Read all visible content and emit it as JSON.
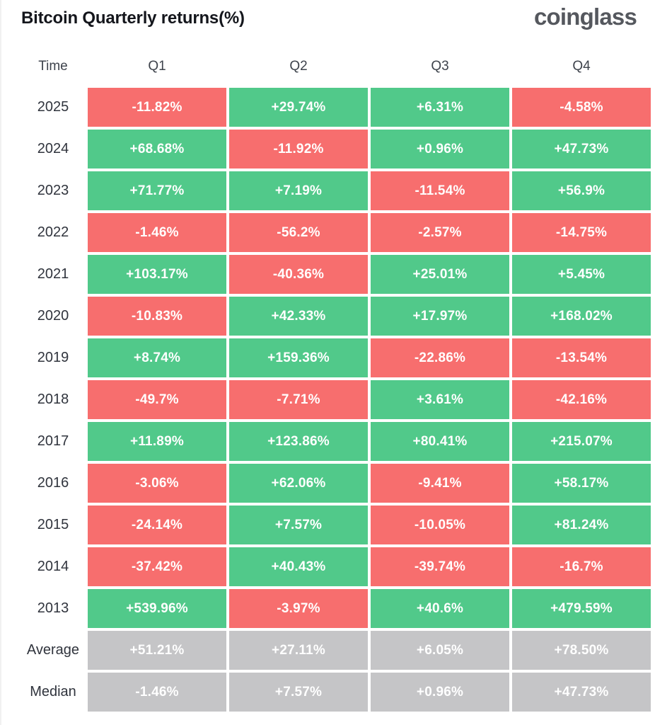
{
  "header": {
    "title": "Bitcoin Quarterly returns(%)",
    "logo_text": "coinglass"
  },
  "colors": {
    "positive": "#51c98a",
    "negative": "#f76e6e",
    "neutral": "#c5c5c7",
    "title_text": "#14161c",
    "logo_text": "#55585e",
    "cell_text": "#ffffff"
  },
  "table": {
    "columns": [
      "Time",
      "Q1",
      "Q2",
      "Q3",
      "Q4"
    ],
    "rows": [
      {
        "label": "2025",
        "values": [
          "-11.82%",
          "+29.74%",
          "+6.31%",
          "-4.58%"
        ],
        "types": [
          "neg",
          "pos",
          "pos",
          "neg"
        ]
      },
      {
        "label": "2024",
        "values": [
          "+68.68%",
          "-11.92%",
          "+0.96%",
          "+47.73%"
        ],
        "types": [
          "pos",
          "neg",
          "pos",
          "pos"
        ]
      },
      {
        "label": "2023",
        "values": [
          "+71.77%",
          "+7.19%",
          "-11.54%",
          "+56.9%"
        ],
        "types": [
          "pos",
          "pos",
          "neg",
          "pos"
        ]
      },
      {
        "label": "2022",
        "values": [
          "-1.46%",
          "-56.2%",
          "-2.57%",
          "-14.75%"
        ],
        "types": [
          "neg",
          "neg",
          "neg",
          "neg"
        ]
      },
      {
        "label": "2021",
        "values": [
          "+103.17%",
          "-40.36%",
          "+25.01%",
          "+5.45%"
        ],
        "types": [
          "pos",
          "neg",
          "pos",
          "pos"
        ]
      },
      {
        "label": "2020",
        "values": [
          "-10.83%",
          "+42.33%",
          "+17.97%",
          "+168.02%"
        ],
        "types": [
          "neg",
          "pos",
          "pos",
          "pos"
        ]
      },
      {
        "label": "2019",
        "values": [
          "+8.74%",
          "+159.36%",
          "-22.86%",
          "-13.54%"
        ],
        "types": [
          "pos",
          "pos",
          "neg",
          "neg"
        ]
      },
      {
        "label": "2018",
        "values": [
          "-49.7%",
          "-7.71%",
          "+3.61%",
          "-42.16%"
        ],
        "types": [
          "neg",
          "neg",
          "pos",
          "neg"
        ]
      },
      {
        "label": "2017",
        "values": [
          "+11.89%",
          "+123.86%",
          "+80.41%",
          "+215.07%"
        ],
        "types": [
          "pos",
          "pos",
          "pos",
          "pos"
        ]
      },
      {
        "label": "2016",
        "values": [
          "-3.06%",
          "+62.06%",
          "-9.41%",
          "+58.17%"
        ],
        "types": [
          "neg",
          "pos",
          "neg",
          "pos"
        ]
      },
      {
        "label": "2015",
        "values": [
          "-24.14%",
          "+7.57%",
          "-10.05%",
          "+81.24%"
        ],
        "types": [
          "neg",
          "pos",
          "neg",
          "pos"
        ]
      },
      {
        "label": "2014",
        "values": [
          "-37.42%",
          "+40.43%",
          "-39.74%",
          "-16.7%"
        ],
        "types": [
          "neg",
          "pos",
          "neg",
          "neg"
        ]
      },
      {
        "label": "2013",
        "values": [
          "+539.96%",
          "-3.97%",
          "+40.6%",
          "+479.59%"
        ],
        "types": [
          "pos",
          "neg",
          "pos",
          "pos"
        ]
      },
      {
        "label": "Average",
        "values": [
          "+51.21%",
          "+27.11%",
          "+6.05%",
          "+78.50%"
        ],
        "types": [
          "neu",
          "neu",
          "neu",
          "neu"
        ]
      },
      {
        "label": "Median",
        "values": [
          "-1.46%",
          "+7.57%",
          "+0.96%",
          "+47.73%"
        ],
        "types": [
          "neu",
          "neu",
          "neu",
          "neu"
        ]
      }
    ]
  },
  "chart_data": {
    "type": "table",
    "title": "Bitcoin Quarterly returns(%)",
    "value_unit": "%",
    "columns": [
      "Q1",
      "Q2",
      "Q3",
      "Q4"
    ],
    "row_labels": [
      "2025",
      "2024",
      "2023",
      "2022",
      "2021",
      "2020",
      "2019",
      "2018",
      "2017",
      "2016",
      "2015",
      "2014",
      "2013",
      "Average",
      "Median"
    ],
    "values": [
      [
        -11.82,
        29.74,
        6.31,
        -4.58
      ],
      [
        68.68,
        -11.92,
        0.96,
        47.73
      ],
      [
        71.77,
        7.19,
        -11.54,
        56.9
      ],
      [
        -1.46,
        -56.2,
        -2.57,
        -14.75
      ],
      [
        103.17,
        -40.36,
        25.01,
        5.45
      ],
      [
        -10.83,
        42.33,
        17.97,
        168.02
      ],
      [
        8.74,
        159.36,
        -22.86,
        -13.54
      ],
      [
        -49.7,
        -7.71,
        3.61,
        -42.16
      ],
      [
        11.89,
        123.86,
        80.41,
        215.07
      ],
      [
        -3.06,
        62.06,
        -9.41,
        58.17
      ],
      [
        -24.14,
        7.57,
        -10.05,
        81.24
      ],
      [
        -37.42,
        40.43,
        -39.74,
        -16.7
      ],
      [
        539.96,
        -3.97,
        40.6,
        479.59
      ],
      [
        51.21,
        27.11,
        6.05,
        78.5
      ],
      [
        -1.46,
        7.57,
        0.96,
        47.73
      ]
    ],
    "legend": "green = positive return, red = negative return, gray = summary statistic",
    "source_brand": "coinglass"
  }
}
